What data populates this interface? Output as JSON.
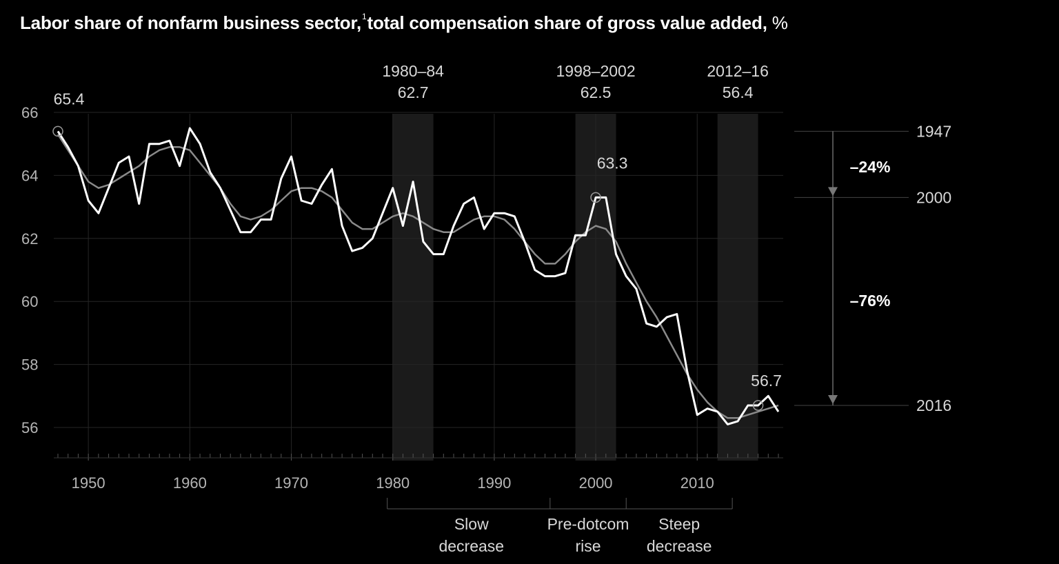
{
  "title": {
    "text": "Labor share of nonfarm business sector,",
    "footnote": "1",
    "rest": "total compensation share of gross value added,",
    "unit": "%"
  },
  "chart_data": {
    "type": "line",
    "title": "Labor share of nonfarm business sector, total compensation share of gross value added, %",
    "xlim": [
      1946,
      2019
    ],
    "ylim": [
      55,
      67
    ],
    "y_ticks": [
      56,
      58,
      60,
      62,
      64,
      66
    ],
    "x_ticks": [
      1950,
      1960,
      1970,
      1980,
      1990,
      2000,
      2010
    ],
    "grid": true,
    "x": [
      1947,
      1948,
      1949,
      1950,
      1951,
      1952,
      1953,
      1954,
      1955,
      1956,
      1957,
      1958,
      1959,
      1960,
      1961,
      1962,
      1963,
      1964,
      1965,
      1966,
      1967,
      1968,
      1969,
      1970,
      1971,
      1972,
      1973,
      1974,
      1975,
      1976,
      1977,
      1978,
      1979,
      1980,
      1981,
      1982,
      1983,
      1984,
      1985,
      1986,
      1987,
      1988,
      1989,
      1990,
      1991,
      1992,
      1993,
      1994,
      1995,
      1996,
      1997,
      1998,
      1999,
      2000,
      2001,
      2002,
      2003,
      2004,
      2005,
      2006,
      2007,
      2008,
      2009,
      2010,
      2011,
      2012,
      2013,
      2014,
      2015,
      2016,
      2017,
      2018
    ],
    "series": [
      {
        "role": "annual",
        "values": [
          65.4,
          64.9,
          64.3,
          63.2,
          62.8,
          63.6,
          64.4,
          64.6,
          63.1,
          65.0,
          65.0,
          65.1,
          64.3,
          65.5,
          65.0,
          64.1,
          63.6,
          62.9,
          62.2,
          62.2,
          62.6,
          62.6,
          63.9,
          64.6,
          63.2,
          63.1,
          63.7,
          64.2,
          62.4,
          61.6,
          61.7,
          62.0,
          62.8,
          63.6,
          62.4,
          63.8,
          61.9,
          61.5,
          61.5,
          62.4,
          63.1,
          63.3,
          62.3,
          62.8,
          62.8,
          62.7,
          61.9,
          61.0,
          60.8,
          60.8,
          60.9,
          62.1,
          62.1,
          63.3,
          63.3,
          61.5,
          60.8,
          60.4,
          59.3,
          59.2,
          59.5,
          59.6,
          57.8,
          56.4,
          56.6,
          56.5,
          56.1,
          56.2,
          56.7,
          56.7,
          57.0,
          56.5
        ]
      },
      {
        "role": "trend",
        "values": [
          65.3,
          64.8,
          64.3,
          63.8,
          63.6,
          63.7,
          63.9,
          64.1,
          64.3,
          64.6,
          64.8,
          64.9,
          64.9,
          64.8,
          64.4,
          64.0,
          63.6,
          63.1,
          62.7,
          62.6,
          62.7,
          62.9,
          63.2,
          63.5,
          63.6,
          63.6,
          63.5,
          63.3,
          62.9,
          62.5,
          62.3,
          62.3,
          62.5,
          62.7,
          62.8,
          62.7,
          62.5,
          62.3,
          62.2,
          62.2,
          62.4,
          62.6,
          62.7,
          62.7,
          62.6,
          62.3,
          61.9,
          61.5,
          61.2,
          61.2,
          61.5,
          61.9,
          62.2,
          62.4,
          62.3,
          61.9,
          61.2,
          60.6,
          60.0,
          59.5,
          58.9,
          58.3,
          57.7,
          57.2,
          56.8,
          56.5,
          56.3,
          56.3,
          56.4,
          56.5,
          56.6,
          56.7
        ]
      }
    ],
    "shaded_periods": [
      {
        "start": 1980,
        "end": 1984,
        "label": "1980–84",
        "value": "62.7"
      },
      {
        "start": 1998,
        "end": 2002,
        "label": "1998–2002",
        "value": "62.5"
      },
      {
        "start": 2012,
        "end": 2016,
        "label": "2012–16",
        "value": "56.4"
      }
    ],
    "point_labels": [
      {
        "x": 1947,
        "y": 65.4,
        "label": "65.4"
      },
      {
        "x": 2000,
        "y": 63.3,
        "label": "63.3"
      },
      {
        "x": 2016,
        "y": 56.7,
        "label": "56.7"
      }
    ],
    "side_bracket": {
      "levels": [
        {
          "year": "1947",
          "y": 65.4
        },
        {
          "year": "2000",
          "y": 63.3
        },
        {
          "year": "2016",
          "y": 56.7
        }
      ],
      "shares": [
        "–24%",
        "–76%"
      ]
    },
    "phases": [
      {
        "label_line1": "Slow",
        "label_line2": "decrease",
        "start": 1980,
        "end": 1995.5
      },
      {
        "label_line1": "Pre-dotcom",
        "label_line2": "rise",
        "start": 1995.5,
        "end": 2003
      },
      {
        "label_line1": "Steep",
        "label_line2": "decrease",
        "start": 2003,
        "end": 2014
      }
    ]
  }
}
